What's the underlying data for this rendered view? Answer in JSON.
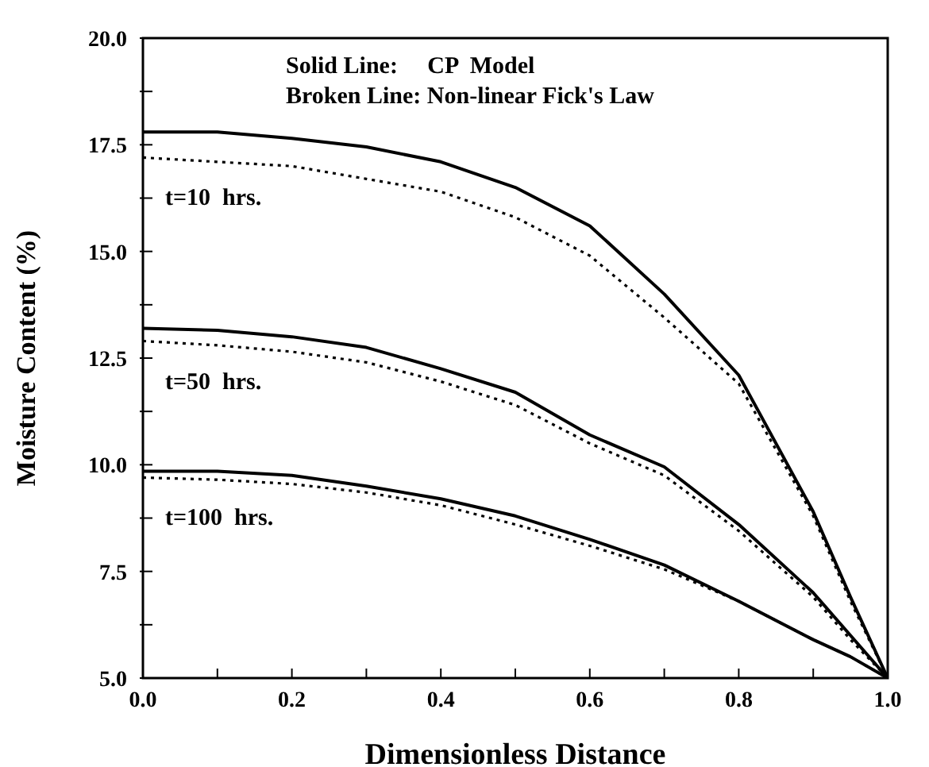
{
  "chart_data": {
    "type": "line",
    "xlabel": "Dimensionless Distance",
    "ylabel": "Moisture Content (%)",
    "x": [
      0,
      0.1,
      0.2,
      0.3,
      0.4,
      0.5,
      0.6,
      0.7,
      0.8,
      0.9,
      0.95,
      1.0
    ],
    "series": [
      {
        "color": "#000000",
        "line_style": "solid",
        "values": [
          17.8,
          17.8,
          17.65,
          17.45,
          17.1,
          16.5,
          15.6,
          14.0,
          12.1,
          8.9,
          6.9,
          5.0
        ]
      },
      {
        "color": "#000000",
        "line_style": "dotted",
        "values": [
          17.2,
          17.1,
          17.0,
          16.7,
          16.4,
          15.8,
          14.9,
          13.45,
          11.9,
          8.8,
          6.8,
          5.0
        ]
      },
      {
        "color": "#000000",
        "line_style": "solid",
        "values": [
          13.2,
          13.15,
          13.0,
          12.75,
          12.25,
          11.7,
          10.7,
          9.95,
          8.6,
          7.0,
          6.0,
          5.0
        ]
      },
      {
        "color": "#000000",
        "line_style": "dotted",
        "values": [
          12.9,
          12.8,
          12.65,
          12.4,
          11.95,
          11.4,
          10.5,
          9.75,
          8.45,
          6.9,
          5.9,
          5.0
        ]
      },
      {
        "color": "#000000",
        "line_style": "solid",
        "values": [
          9.85,
          9.85,
          9.75,
          9.5,
          9.2,
          8.8,
          8.25,
          7.65,
          6.8,
          5.9,
          5.5,
          5.0
        ]
      },
      {
        "color": "#000000",
        "line_style": "dotted",
        "values": [
          9.7,
          9.65,
          9.55,
          9.35,
          9.05,
          8.6,
          8.1,
          7.55,
          6.8,
          5.9,
          5.5,
          5.0
        ]
      }
    ],
    "xlim": [
      0,
      1
    ],
    "xticks": [
      {
        "value": 0,
        "label": "0.0"
      },
      {
        "value": 0.1,
        "label": null
      },
      {
        "value": 0.2,
        "label": "0.2"
      },
      {
        "value": 0.3,
        "label": null
      },
      {
        "value": 0.4,
        "label": "0.4"
      },
      {
        "value": 0.5,
        "label": null
      },
      {
        "value": 0.6,
        "label": "0.6"
      },
      {
        "value": 0.7,
        "label": null
      },
      {
        "value": 0.8,
        "label": "0.8"
      },
      {
        "value": 0.9,
        "label": null
      },
      {
        "value": 1,
        "label": "1.0"
      }
    ],
    "ylim": [
      5,
      20
    ],
    "yticks": [
      {
        "value": 5,
        "label": "5.0"
      },
      {
        "value": 6.25,
        "label": null
      },
      {
        "value": 7.5,
        "label": "7.5"
      },
      {
        "value": 8.75,
        "label": null
      },
      {
        "value": 10,
        "label": "10.0"
      },
      {
        "value": 11.25,
        "label": null
      },
      {
        "value": 12.5,
        "label": "12.5"
      },
      {
        "value": 13.75,
        "label": null
      },
      {
        "value": 15,
        "label": "15.0"
      },
      {
        "value": 16.25,
        "label": null
      },
      {
        "value": 17.5,
        "label": "17.5"
      },
      {
        "value": 18.75,
        "label": null
      },
      {
        "value": 20,
        "label": "20.0"
      }
    ],
    "annotations": [
      "Solid Line:     CP  Model",
      "Broken Line: Non-linear Fick's Law",
      "t=10  hrs.",
      "t=50  hrs.",
      "t=100  hrs."
    ],
    "grid": false,
    "marker": "none"
  }
}
